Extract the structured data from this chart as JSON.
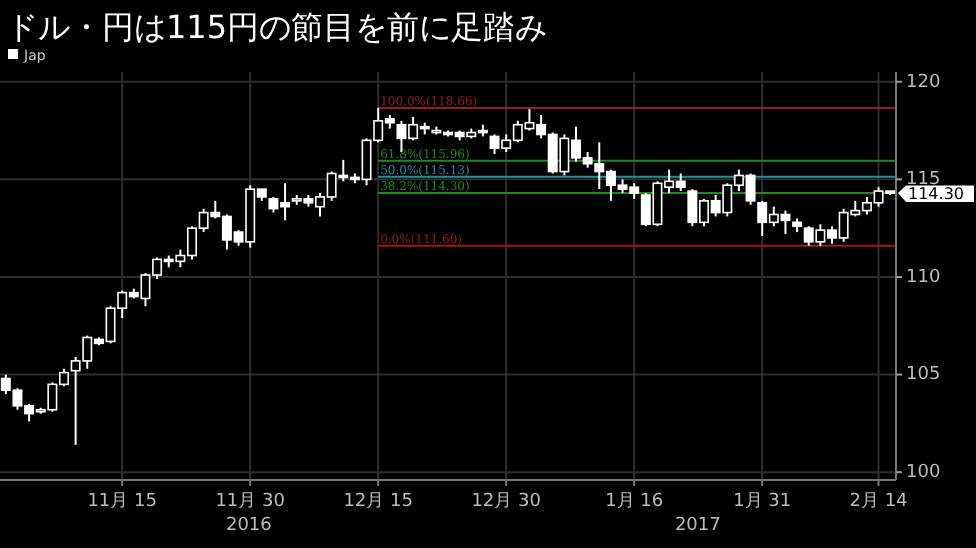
{
  "chart_data": {
    "type": "candlestick",
    "title": "ドル・円は115円の節目を前に足踏み",
    "categories": [
      null,
      null,
      null,
      null,
      null,
      null,
      null,
      null,
      null,
      null,
      "11月 15",
      null,
      null,
      null,
      null,
      null,
      null,
      null,
      null,
      null,
      null,
      "11月 30",
      null,
      null,
      null,
      null,
      null,
      null,
      null,
      null,
      null,
      null,
      "12月 15",
      null,
      null,
      null,
      null,
      null,
      null,
      null,
      null,
      null,
      null,
      "12月 30",
      null,
      null,
      null,
      null,
      null,
      null,
      null,
      null,
      null,
      null,
      "1月 16",
      null,
      null,
      null,
      null,
      null,
      null,
      null,
      null,
      null,
      null,
      "1月 31",
      null,
      null,
      null,
      null,
      null,
      null,
      null,
      null,
      null,
      "2月 14",
      null
    ],
    "series": [
      {
        "name": "Jap",
        "color": "#ffffff",
        "ohlc": [
          [
            104.8,
            105.0,
            104.0,
            104.2
          ],
          [
            104.2,
            104.3,
            103.2,
            103.4
          ],
          [
            103.4,
            103.5,
            102.6,
            103.0
          ],
          [
            103.1,
            103.3,
            103.0,
            103.2
          ],
          [
            103.2,
            104.6,
            103.1,
            104.5
          ],
          [
            104.5,
            105.3,
            104.4,
            105.1
          ],
          [
            105.2,
            105.9,
            101.4,
            105.7
          ],
          [
            105.7,
            107.0,
            105.3,
            106.9
          ],
          [
            106.8,
            106.9,
            106.5,
            106.6
          ],
          [
            106.7,
            108.5,
            106.6,
            108.4
          ],
          [
            108.4,
            109.3,
            107.9,
            109.2
          ],
          [
            109.2,
            109.4,
            108.9,
            109.0
          ],
          [
            108.9,
            110.2,
            108.5,
            110.1
          ],
          [
            110.1,
            111.0,
            109.9,
            110.9
          ],
          [
            110.9,
            111.1,
            110.5,
            110.8
          ],
          [
            110.8,
            111.4,
            110.5,
            111.1
          ],
          [
            111.1,
            112.6,
            110.9,
            112.5
          ],
          [
            112.5,
            113.5,
            112.3,
            113.3
          ],
          [
            113.3,
            113.9,
            113.0,
            113.1
          ],
          [
            113.1,
            113.2,
            111.4,
            111.9
          ],
          [
            112.3,
            112.4,
            111.6,
            111.8
          ],
          [
            111.8,
            114.7,
            111.5,
            114.5
          ],
          [
            114.5,
            114.5,
            113.9,
            114.1
          ],
          [
            114.0,
            114.1,
            113.3,
            113.5
          ],
          [
            113.8,
            114.8,
            112.9,
            113.6
          ],
          [
            113.9,
            114.2,
            113.7,
            114.0
          ],
          [
            114.0,
            114.2,
            113.6,
            113.8
          ],
          [
            113.6,
            114.3,
            113.1,
            114.1
          ],
          [
            114.1,
            115.4,
            113.9,
            115.3
          ],
          [
            115.2,
            116.0,
            114.9,
            115.1
          ],
          [
            115.1,
            115.3,
            114.8,
            115.0
          ],
          [
            115.0,
            117.1,
            114.7,
            117.0
          ],
          [
            117.0,
            118.66,
            116.9,
            118.0
          ],
          [
            118.1,
            118.3,
            117.6,
            117.9
          ],
          [
            117.8,
            118.0,
            116.4,
            117.1
          ],
          [
            117.1,
            118.2,
            117.0,
            117.8
          ],
          [
            117.7,
            117.9,
            117.3,
            117.6
          ],
          [
            117.5,
            117.7,
            117.3,
            117.5
          ],
          [
            117.4,
            117.5,
            117.2,
            117.3
          ],
          [
            117.4,
            117.5,
            117.0,
            117.2
          ],
          [
            117.2,
            117.6,
            117.1,
            117.4
          ],
          [
            117.5,
            117.8,
            117.2,
            117.4
          ],
          [
            117.2,
            117.3,
            116.3,
            116.6
          ],
          [
            116.6,
            117.3,
            116.4,
            117.0
          ],
          [
            117.0,
            118.0,
            116.9,
            117.8
          ],
          [
            117.6,
            118.6,
            117.5,
            117.9
          ],
          [
            117.8,
            118.3,
            117.1,
            117.3
          ],
          [
            117.3,
            117.4,
            115.3,
            115.4
          ],
          [
            115.4,
            117.3,
            115.2,
            117.1
          ],
          [
            117.0,
            117.7,
            115.9,
            116.1
          ],
          [
            116.1,
            116.4,
            115.6,
            115.8
          ],
          [
            115.8,
            116.9,
            114.5,
            115.4
          ],
          [
            115.4,
            115.5,
            113.9,
            114.7
          ],
          [
            114.7,
            115.0,
            114.3,
            114.5
          ],
          [
            114.6,
            114.8,
            114.0,
            114.3
          ],
          [
            114.2,
            114.3,
            112.6,
            112.7
          ],
          [
            112.7,
            114.9,
            112.6,
            114.8
          ],
          [
            114.6,
            115.5,
            114.3,
            114.9
          ],
          [
            114.9,
            115.3,
            114.4,
            114.6
          ],
          [
            114.4,
            114.5,
            112.6,
            112.8
          ],
          [
            112.8,
            114.0,
            112.6,
            113.9
          ],
          [
            113.9,
            114.2,
            113.1,
            113.3
          ],
          [
            113.3,
            114.8,
            113.1,
            114.7
          ],
          [
            114.7,
            115.5,
            114.4,
            115.2
          ],
          [
            115.2,
            115.3,
            113.7,
            113.9
          ],
          [
            113.8,
            113.9,
            112.1,
            112.8
          ],
          [
            112.8,
            113.6,
            112.6,
            113.2
          ],
          [
            113.2,
            113.4,
            112.2,
            112.9
          ],
          [
            112.8,
            113.0,
            112.3,
            112.6
          ],
          [
            112.5,
            112.6,
            111.6,
            111.8
          ],
          [
            111.8,
            112.7,
            111.6,
            112.4
          ],
          [
            112.4,
            112.6,
            111.7,
            112.0
          ],
          [
            112.0,
            113.5,
            111.8,
            113.3
          ],
          [
            113.2,
            113.9,
            113.1,
            113.4
          ],
          [
            113.4,
            114.1,
            113.2,
            113.8
          ],
          [
            113.8,
            114.6,
            113.6,
            114.4
          ],
          [
            114.4,
            114.4,
            114.2,
            114.3
          ]
        ]
      }
    ],
    "ylim": [
      99.6,
      120.5
    ],
    "yticks": [
      100,
      105,
      110,
      115,
      120
    ],
    "grid": true,
    "legend": "top left",
    "ref_lines": [
      {
        "axis": "y",
        "value": 118.66,
        "label": "100.0%(118.66)",
        "color": "#9b1b1b"
      },
      {
        "axis": "y",
        "value": 115.96,
        "label": "61.8%(115.96)",
        "color": "#1e8a1e"
      },
      {
        "axis": "y",
        "value": 115.13,
        "label": "50.0%(115.13)",
        "color": "#2a8c9c"
      },
      {
        "axis": "y",
        "value": 114.3,
        "label": "38.2%(114.30)",
        "color": "#1e8a1e"
      },
      {
        "axis": "y",
        "value": 111.6,
        "label": "0.0%(111.60)",
        "color": "#9b1b1b"
      }
    ],
    "annotations": [
      "2016",
      "2017",
      "114.30"
    ]
  }
}
